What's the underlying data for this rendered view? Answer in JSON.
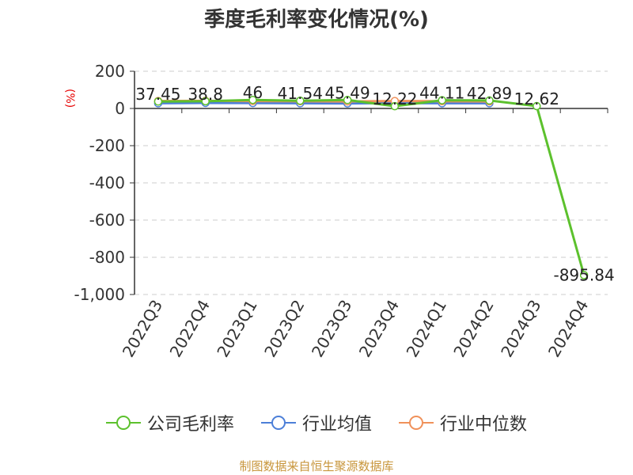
{
  "title": "季度毛利率变化情况(%)",
  "unit_label": "(%)",
  "source": "制图数据来自恒生聚源数据库",
  "colors": {
    "company": "#5cc12d",
    "industry_avg": "#4c7fd8",
    "industry_median": "#f0915a",
    "axis": "#333333",
    "grid": "#cccccc",
    "unit": "#e60000"
  },
  "chart_data": {
    "type": "line",
    "title": "季度毛利率变化情况(%)",
    "ylabel": "(%)",
    "ylim": [
      -1000,
      200
    ],
    "yticks": [
      200,
      0,
      -200,
      -400,
      -600,
      -800,
      -1000
    ],
    "ytick_labels": [
      "200",
      "0",
      "-200",
      "-400",
      "-600",
      "-800",
      "-1,000"
    ],
    "grid": true,
    "legend_position": "bottom",
    "categories": [
      "2022Q3",
      "2022Q4",
      "2023Q1",
      "2023Q2",
      "2023Q3",
      "2023Q4",
      "2024Q1",
      "2024Q2",
      "2024Q3",
      "2024Q4"
    ],
    "series": [
      {
        "name": "公司毛利率",
        "values": [
          37.45,
          38.8,
          46,
          41.54,
          45.49,
          12.22,
          44.11,
          42.89,
          12.62,
          -895.84
        ],
        "labels": [
          "37.45",
          "38.8",
          "46",
          "41.54",
          "45.49",
          "12.22",
          "44.11",
          "42.89",
          "12.62",
          "-895.84"
        ]
      },
      {
        "name": "行业均值",
        "values": [
          28,
          30,
          29,
          28,
          27,
          29,
          28,
          28,
          null,
          null
        ]
      },
      {
        "name": "行业中位数",
        "values": [
          40,
          41,
          40,
          39,
          38,
          40,
          39,
          38,
          null,
          null
        ]
      }
    ]
  }
}
